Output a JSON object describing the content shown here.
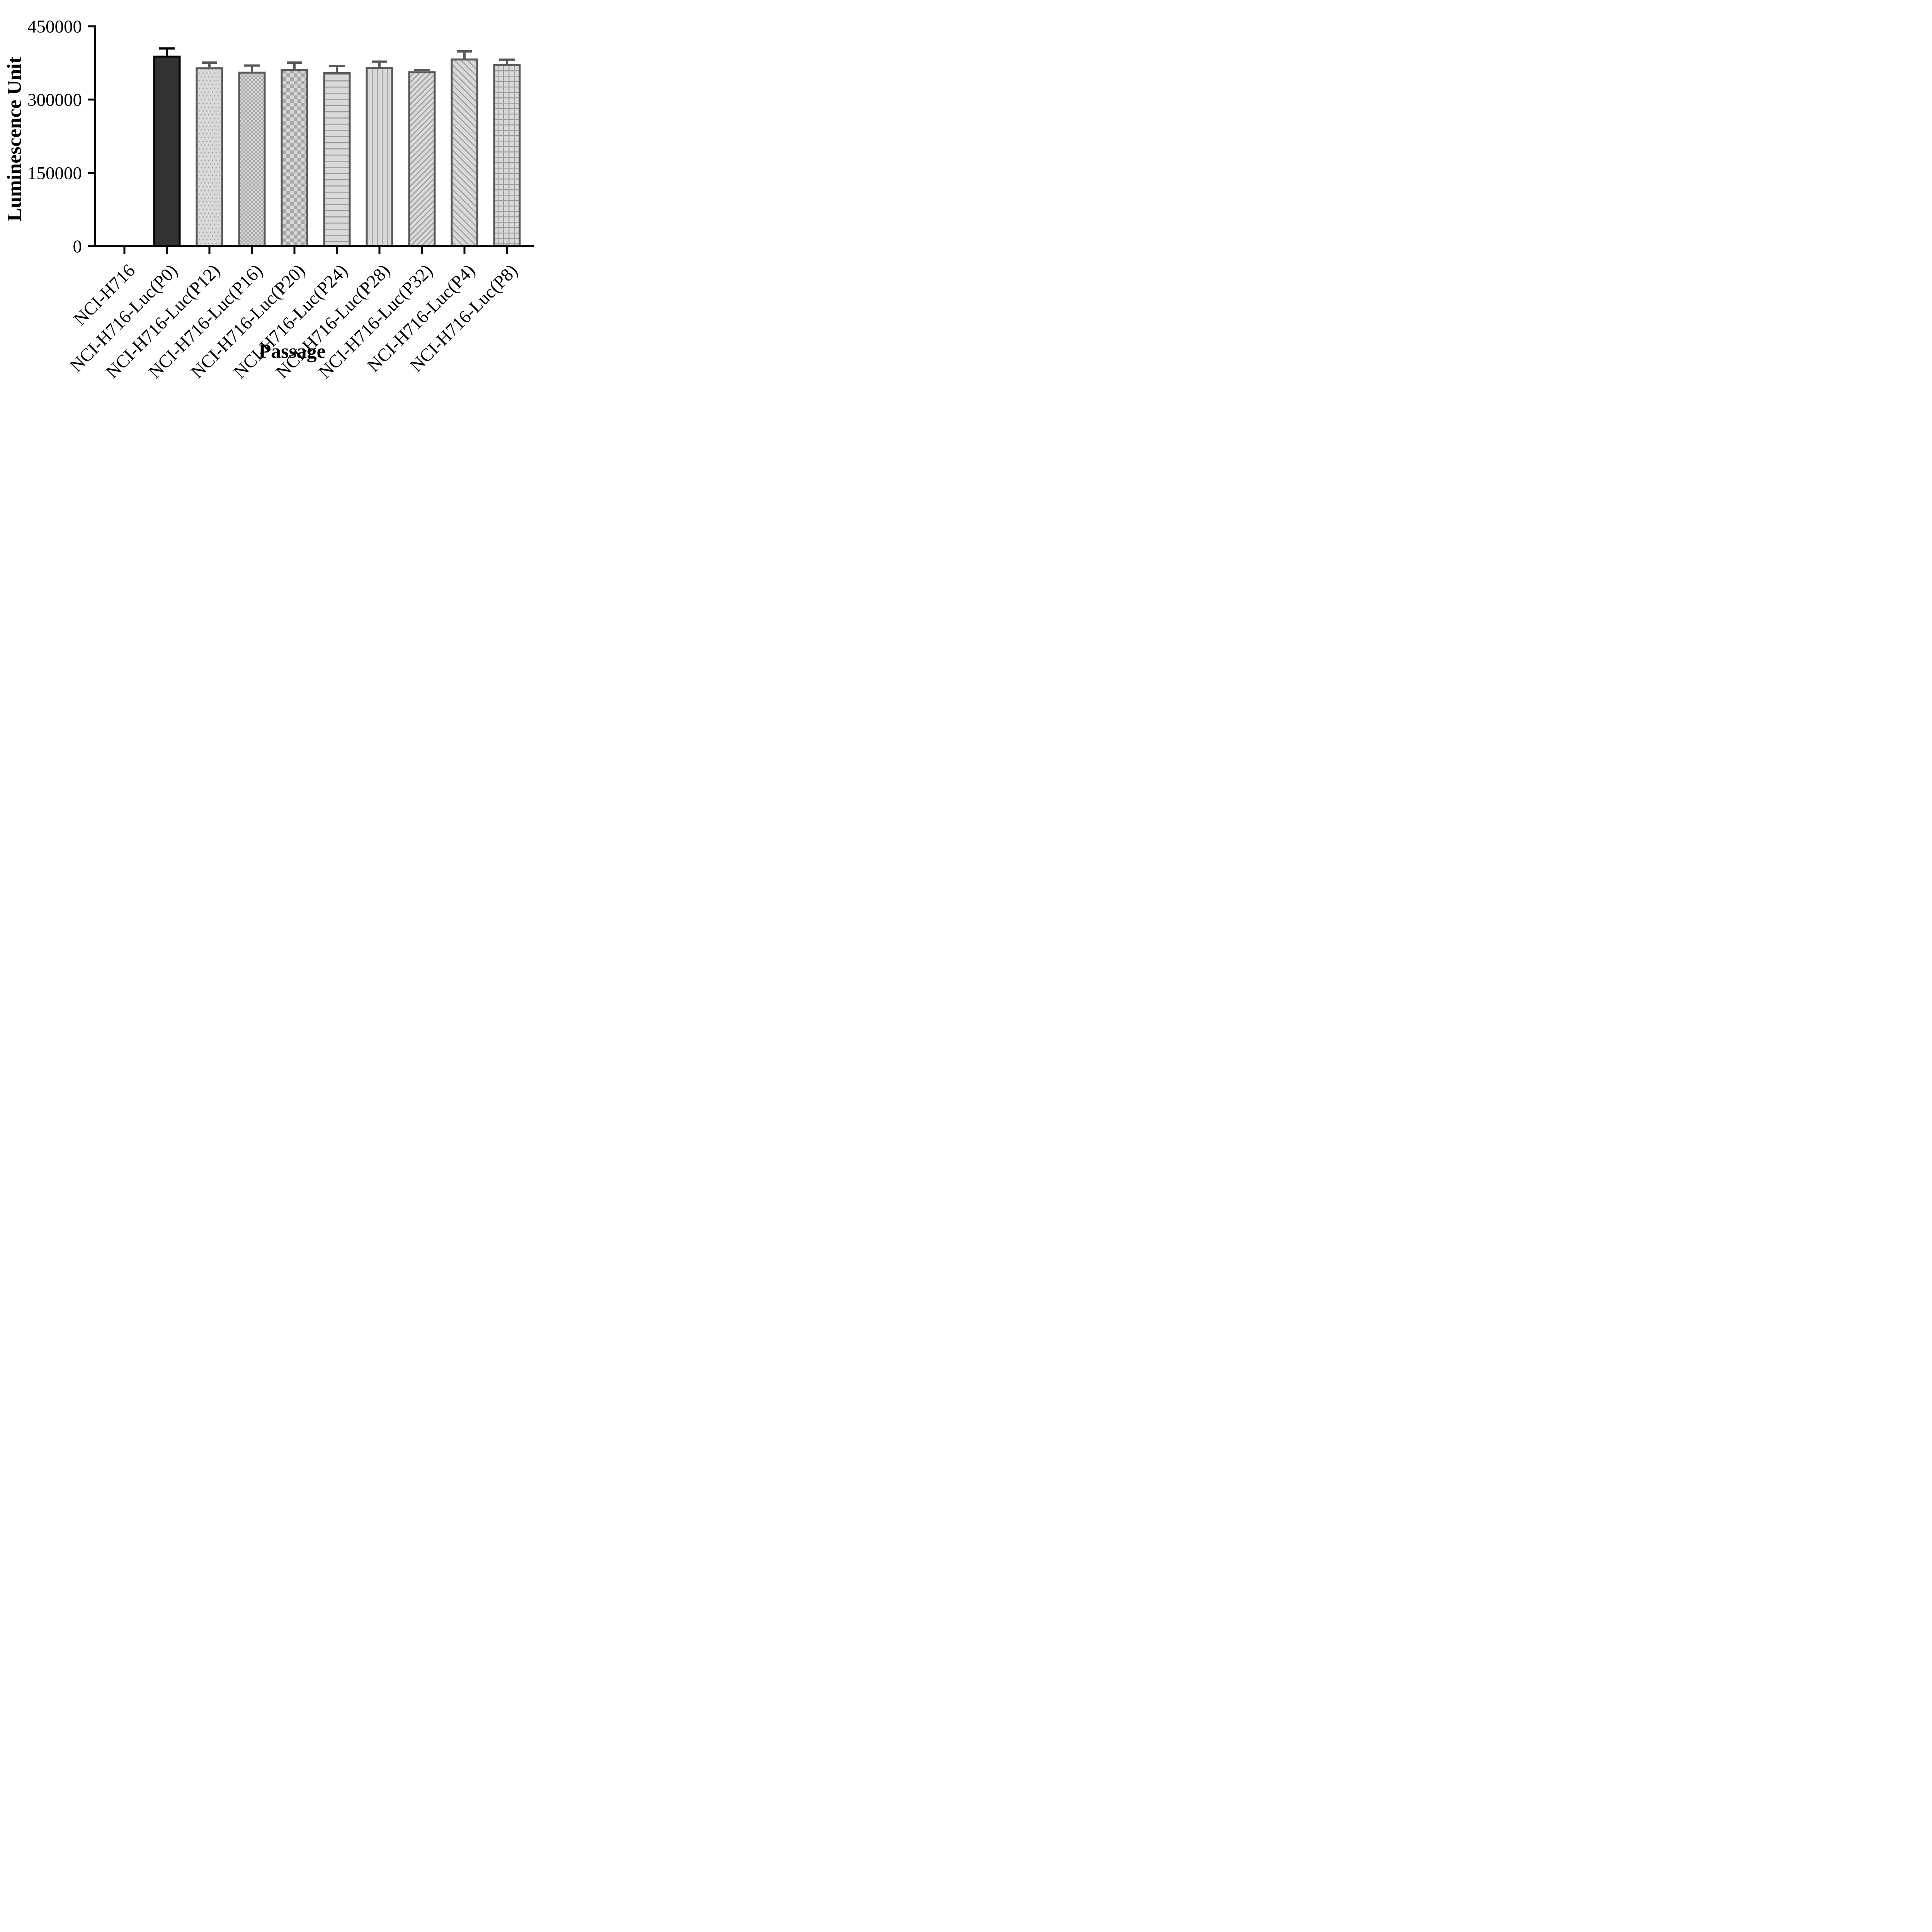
{
  "figure": {
    "background": "#ffffff"
  },
  "chart_data": {
    "type": "bar",
    "title": "",
    "xlabel": "Passage",
    "ylabel": "Luminescence Unit",
    "ylim": [
      0,
      450000
    ],
    "grid": false,
    "legend": "none",
    "y_ticks": [
      0,
      150000,
      300000,
      450000
    ],
    "y_tick_labels": [
      "0",
      "150000",
      "300000",
      "450000"
    ],
    "categories": [
      "NCI-H716",
      "NCI-H716-Luc(P0)",
      "NCI-H716-Luc(P12)",
      "NCI-H716-Luc(P16)",
      "NCI-H716-Luc(P20)",
      "NCI-H716-Luc(P24)",
      "NCI-H716-Luc(P28)",
      "NCI-H716-Luc(P32)",
      "NCI-H716-Luc(P4)",
      "NCI-H716-Luc(P8)"
    ],
    "values": [
      0,
      390000,
      366000,
      357000,
      363000,
      356000,
      367000,
      358000,
      384000,
      373000
    ],
    "errors": [
      0,
      17000,
      12000,
      15000,
      15000,
      15000,
      13000,
      5000,
      17000,
      11000
    ],
    "error_direction": "plus-only",
    "bar_patterns": [
      "none",
      "solid",
      "dots",
      "checker-fine",
      "checker-coarse",
      "hlines",
      "vlines",
      "diag-up",
      "diag-down",
      "grid"
    ],
    "colors": {
      "axis": "#000000",
      "text": "#000000",
      "solid_fill": "#313233",
      "solid_border": "#000000",
      "pattern_bg": "#d8d9da",
      "pattern_fg": "#9b9c9e",
      "checker_bg": "#d6d7d8",
      "checker_fg": "#a7a8aa",
      "pattern_border": "#58595a"
    }
  }
}
